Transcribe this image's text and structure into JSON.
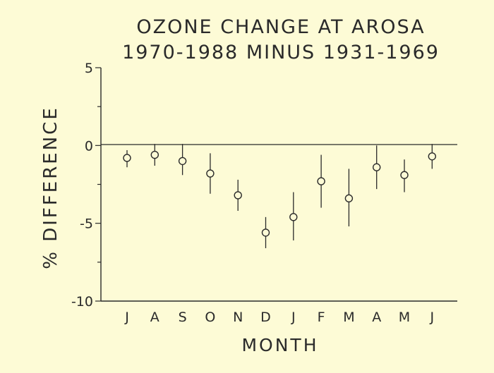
{
  "chart_data": {
    "type": "scatter",
    "title": "OZONE CHANGE AT AROSA",
    "subtitle": "1970-1988 MINUS 1931-1969",
    "xlabel": "MONTH",
    "ylabel": "% DIFFERENCE",
    "categories": [
      "J",
      "A",
      "S",
      "O",
      "N",
      "D",
      "J",
      "F",
      "M",
      "A",
      "M",
      "J"
    ],
    "y_tick_labels": [
      "5",
      "0",
      "-5",
      "-10"
    ],
    "y_ticks": [
      5,
      0,
      -5,
      -10
    ],
    "ylim": [
      -10,
      5
    ],
    "zero_line": true,
    "grid": false,
    "series": [
      {
        "values": [
          -0.8,
          -0.6,
          -1.0,
          -1.8,
          -3.2,
          -5.6,
          -4.6,
          -2.3,
          -3.4,
          -1.4,
          -1.9,
          -0.7
        ],
        "error_low": [
          -1.4,
          -1.3,
          -1.9,
          -3.1,
          -4.2,
          -6.6,
          -6.1,
          -4.0,
          -5.2,
          -2.8,
          -3.0,
          -1.5
        ],
        "error_high": [
          -0.3,
          0.1,
          0.1,
          -0.5,
          -2.2,
          -4.6,
          -3.0,
          -0.6,
          -1.5,
          0.0,
          -0.9,
          0.1
        ]
      }
    ]
  }
}
